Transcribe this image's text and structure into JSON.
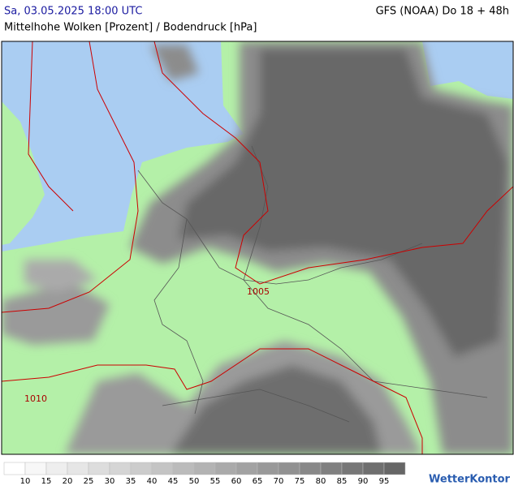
{
  "header": {
    "datetime": "Sa, 03.05.2025 18:00 UTC",
    "model": "GFS (NOAA) Do 18 + 48h",
    "subtitle": "Mittelhohe Wolken [Prozent] / Bodendruck [hPa]"
  },
  "map": {
    "isobar_labels": [
      "1005",
      "1010"
    ]
  },
  "legend": {
    "ticks": [
      10,
      15,
      20,
      25,
      30,
      35,
      40,
      45,
      50,
      55,
      60,
      65,
      70,
      75,
      80,
      85,
      90,
      95
    ]
  },
  "brand": "WetterKontor"
}
